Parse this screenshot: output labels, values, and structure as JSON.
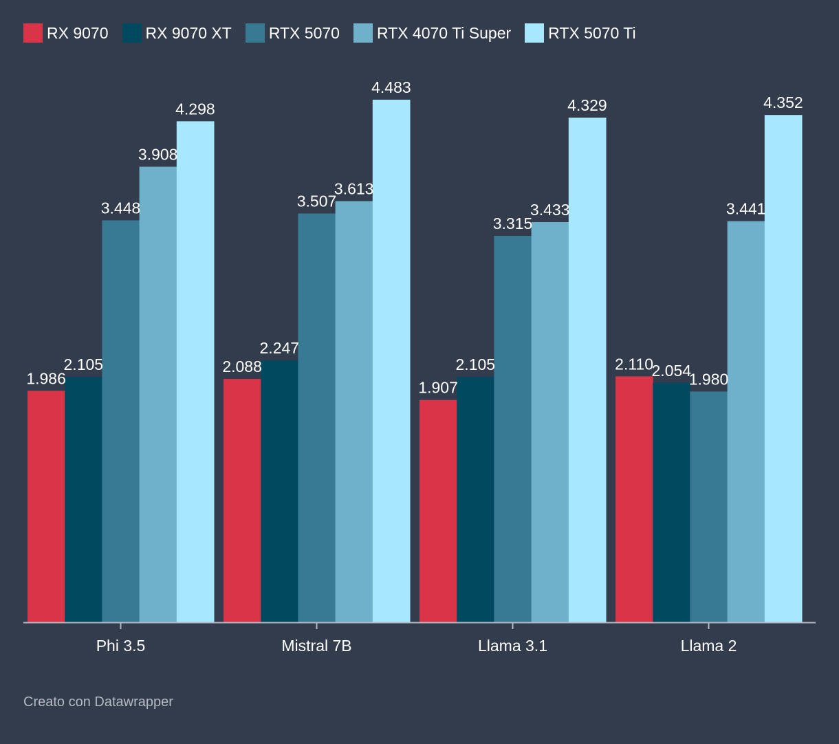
{
  "chart_data": {
    "type": "bar",
    "title": "",
    "xlabel": "",
    "ylabel": "",
    "ylim": [
      0,
      4.483
    ],
    "grid": false,
    "legend_position": "top-left",
    "categories": [
      "Phi 3.5",
      "Mistral 7B",
      "Llama 3.1",
      "Llama 2"
    ],
    "series": [
      {
        "name": "RX 9070",
        "color": "#d93447",
        "values": [
          1.986,
          2.088,
          1.907,
          2.11
        ],
        "labels": [
          "1.986",
          "2.088",
          "1.907",
          "2.110"
        ]
      },
      {
        "name": "RX 9070 XT",
        "color": "#00495f",
        "values": [
          2.105,
          2.247,
          2.105,
          2.054
        ],
        "labels": [
          "2.105",
          "2.247",
          "2.105",
          "2.054"
        ]
      },
      {
        "name": "RTX 5070",
        "color": "#387994",
        "values": [
          3.448,
          3.507,
          3.315,
          1.98
        ],
        "labels": [
          "3.448",
          "3.507",
          "3.315",
          "1.980"
        ]
      },
      {
        "name": "RTX 4070 Ti Super",
        "color": "#6fb0ca",
        "values": [
          3.908,
          3.613,
          3.433,
          3.441
        ],
        "labels": [
          "3.908",
          "3.613",
          "3.433",
          "3.441"
        ]
      },
      {
        "name": "RTX 5070 Ti",
        "color": "#a8e8ff",
        "values": [
          4.298,
          4.483,
          4.329,
          4.352
        ],
        "labels": [
          "4.298",
          "4.483",
          "4.329",
          "4.352"
        ]
      }
    ]
  },
  "footer": {
    "credit": "Creato con Datawrapper"
  },
  "colors": {
    "background": "#333c4c",
    "axis": "#b4bac4"
  }
}
